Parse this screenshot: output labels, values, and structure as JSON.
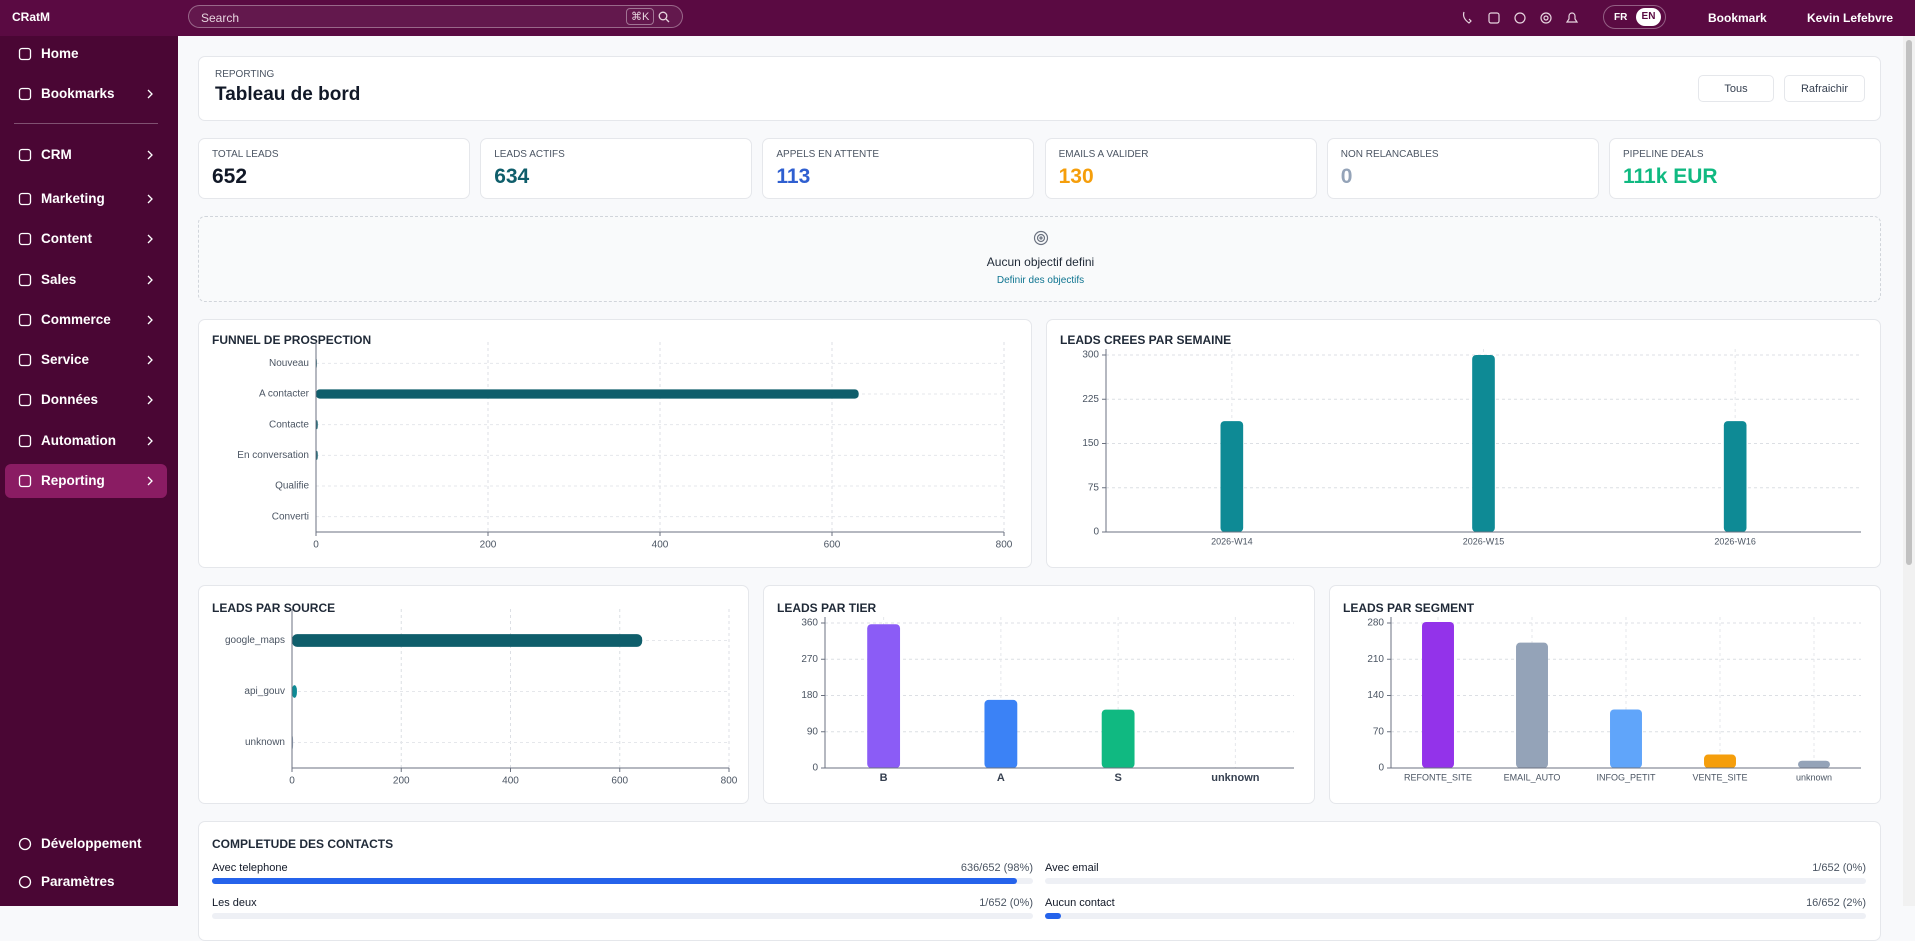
{
  "sidebar": {
    "brand": "CRatM",
    "nav": [
      "Home",
      "Bookmarks",
      "CRM",
      "Marketing",
      "Content",
      "Sales",
      "Commerce",
      "Service",
      "Données",
      "Automation",
      "Reporting"
    ],
    "footer": [
      "Développement",
      "Paramètres"
    ]
  },
  "topbar": {
    "search": "Search",
    "shortcut": "⌘K",
    "languages": [
      "FR",
      "EN"
    ],
    "bookmark": "Bookmark",
    "user": "Kevin Lefebvre"
  },
  "header": {
    "eyebrow": "REPORTING",
    "title": "Tableau de bord",
    "filter": "Tous",
    "refresh": "Rafraichir"
  },
  "kpis": [
    {
      "label": "TOTAL LEADS",
      "value": 652
    },
    {
      "label": "LEADS ACTIFS",
      "value": 634
    },
    {
      "label": "APPELS EN ATTENTE",
      "value": 113
    },
    {
      "label": "EMAILS A VALIDER",
      "value": 130
    },
    {
      "label": "NON RELANCABLES",
      "value": 0
    },
    {
      "label": "PIPELINE DEALS",
      "value": "111k EUR"
    }
  ],
  "goal": {
    "text": "Aucun objectif defini",
    "link": "Definir des objectifs"
  },
  "chart_data": [
    {
      "type": "bar",
      "horizontal": true,
      "title": "FUNNEL DE PROSPECTION",
      "categories": [
        "Nouveau",
        "A contacter",
        "Contacte",
        "En conversation",
        "Qualifie",
        "Converti"
      ],
      "values": [
        1,
        631,
        2,
        2,
        0,
        0
      ],
      "color": "#0f5e6b",
      "xlim": [
        0,
        800
      ],
      "xticks": [
        0,
        200,
        400,
        600,
        800
      ],
      "grid": true
    },
    {
      "type": "bar",
      "title": "LEADS CREES PAR SEMAINE",
      "categories": [
        "2026-W14",
        "2026-W15",
        "2026-W16"
      ],
      "values": [
        188,
        300,
        188
      ],
      "color": "#0e8a95",
      "ylim": [
        0,
        300
      ],
      "yticks": [
        0,
        75,
        150,
        225,
        300
      ],
      "grid": true
    },
    {
      "type": "bar",
      "horizontal": true,
      "title": "LEADS PAR SOURCE",
      "categories": [
        "google_maps",
        "api_gouv",
        "unknown"
      ],
      "values": [
        641,
        9,
        2
      ],
      "colors": [
        "#0f5e6b",
        "#0e8a95",
        "#94a3b8"
      ],
      "xlim": [
        0,
        800
      ],
      "xticks": [
        0,
        200,
        400,
        600,
        800
      ],
      "grid": true
    },
    {
      "type": "bar",
      "title": "LEADS PAR TIER",
      "categories": [
        "B",
        "A",
        "S",
        "unknown"
      ],
      "values": [
        357,
        169,
        145,
        0
      ],
      "colors": [
        "#8b5cf6",
        "#3b82f6",
        "#10b981",
        "#94a3b8"
      ],
      "ylim": [
        0,
        360
      ],
      "yticks": [
        0,
        90,
        180,
        270,
        360
      ],
      "grid": true
    },
    {
      "type": "bar",
      "title": "LEADS PAR SEGMENT",
      "categories": [
        "REFONTE_SITE",
        "EMAIL_AUTO",
        "INFOG_PETIT",
        "VENTE_SITE",
        "unknown"
      ],
      "values": [
        282,
        242,
        113,
        26,
        14
      ],
      "colors": [
        "#9333ea",
        "#94a3b8",
        "#60a5fa",
        "#f59e0b",
        "#94a3b8"
      ],
      "ylim": [
        0,
        280
      ],
      "yticks": [
        0,
        70,
        140,
        210,
        280
      ],
      "grid": true
    }
  ],
  "completeness": {
    "title": "COMPLETUDE DES CONTACTS",
    "rows": [
      {
        "label": "Avec telephone",
        "value": 98,
        "value_label": "636/652 (98%)"
      },
      {
        "label": "Avec email",
        "value": 0,
        "value_label": "1/652 (0%)"
      },
      {
        "label": "Les deux",
        "value": 0,
        "value_label": "1/652 (0%)"
      },
      {
        "label": "Aucun contact",
        "value": 2,
        "value_label": "16/652 (2%)"
      }
    ]
  }
}
